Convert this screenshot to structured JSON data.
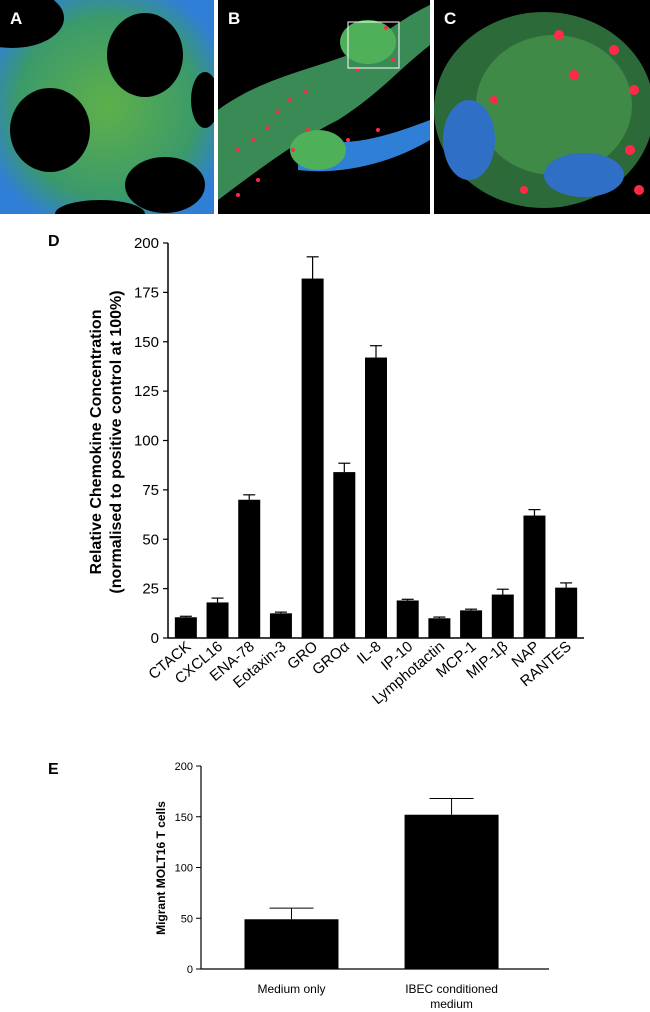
{
  "panels": [
    {
      "label": "A"
    },
    {
      "label": "B"
    },
    {
      "label": "C"
    }
  ],
  "colors": {
    "bar": "#000000",
    "stain_blue": "#2f7fd6",
    "stain_green": "#4fb05a",
    "stain_red": "#ff2a4a"
  },
  "chart_data": [
    {
      "panel_label": "D",
      "type": "bar",
      "categories": [
        "CTACK",
        "CXCL16",
        "ENA-78",
        "Eotaxin-3",
        "GRO",
        "GROα",
        "IL-8",
        "IP-10",
        "Lymphotactin",
        "MCP-1",
        "MIP-1β",
        "NAP",
        "RANTES"
      ],
      "values": [
        10.5,
        18,
        70,
        12.5,
        182,
        84,
        142,
        19,
        10,
        14,
        22,
        62,
        25.5
      ],
      "errors": [
        0.5,
        2.2,
        2.5,
        0.6,
        11,
        4.5,
        6,
        0.6,
        0.6,
        0.6,
        2.7,
        3,
        2.4
      ],
      "ylabel_line1": "Relative Chemokine Concentration",
      "ylabel_line2": "(normalised to positive control at 100%)",
      "ylim": [
        0,
        200
      ],
      "yticks": [
        0,
        25,
        50,
        75,
        100,
        125,
        150,
        175,
        200
      ]
    },
    {
      "panel_label": "E",
      "type": "bar",
      "categories": [
        [
          "Medium only"
        ],
        [
          "IBEC conditioned",
          "medium"
        ]
      ],
      "values": [
        49,
        152
      ],
      "errors": [
        11,
        16
      ],
      "ylabel": "Migrant MOLT16 T cells",
      "ylim": [
        0,
        200
      ],
      "yticks": [
        0,
        50,
        100,
        150,
        200
      ]
    }
  ]
}
